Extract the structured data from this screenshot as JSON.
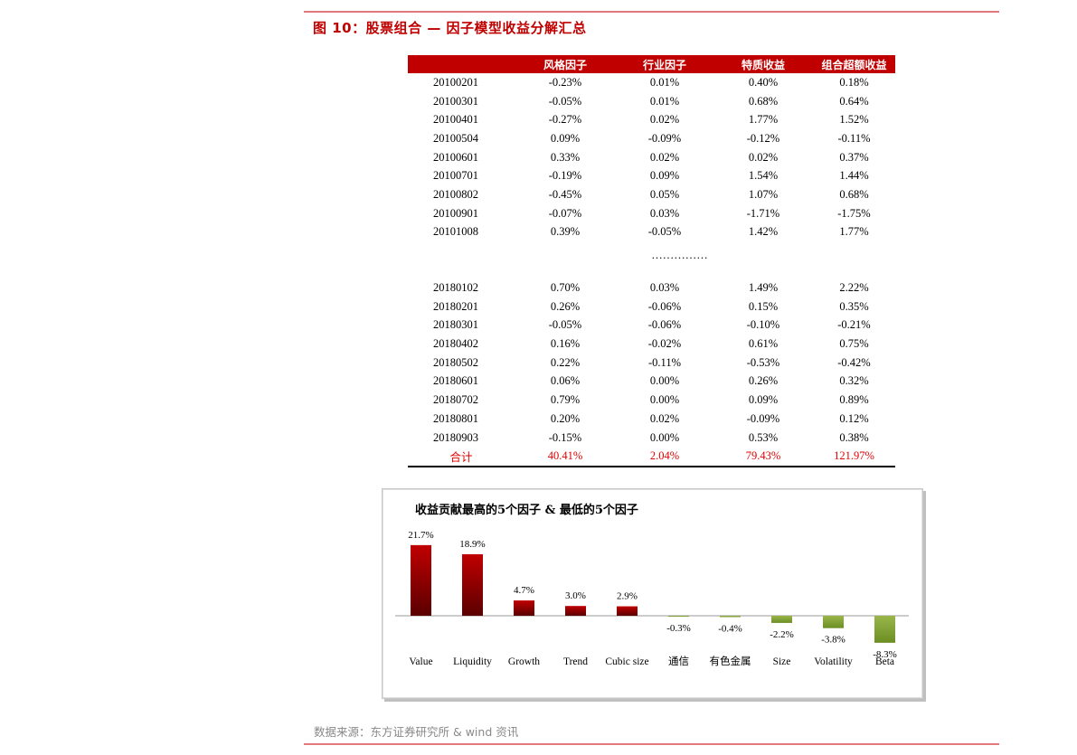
{
  "figure_title": "图 10：股票组合 — 因子模型收益分解汇总",
  "table": {
    "headers": [
      "",
      "风格因子",
      "行业因子",
      "特质收益",
      "组合超额收益"
    ],
    "rows_top": [
      [
        "20100201",
        "-0.23%",
        "0.01%",
        "0.40%",
        "0.18%"
      ],
      [
        "20100301",
        "-0.05%",
        "0.01%",
        "0.68%",
        "0.64%"
      ],
      [
        "20100401",
        "-0.27%",
        "0.02%",
        "1.77%",
        "1.52%"
      ],
      [
        "20100504",
        "0.09%",
        "-0.09%",
        "-0.12%",
        "-0.11%"
      ],
      [
        "20100601",
        "0.33%",
        "0.02%",
        "0.02%",
        "0.37%"
      ],
      [
        "20100701",
        "-0.19%",
        "0.09%",
        "1.54%",
        "1.44%"
      ],
      [
        "20100802",
        "-0.45%",
        "0.05%",
        "1.07%",
        "0.68%"
      ],
      [
        "20100901",
        "-0.07%",
        "0.03%",
        "-1.71%",
        "-1.75%"
      ],
      [
        "20101008",
        "0.39%",
        "-0.05%",
        "1.42%",
        "1.77%"
      ]
    ],
    "ellipsis": "……………",
    "rows_bottom": [
      [
        "20180102",
        "0.70%",
        "0.03%",
        "1.49%",
        "2.22%"
      ],
      [
        "20180201",
        "0.26%",
        "-0.06%",
        "0.15%",
        "0.35%"
      ],
      [
        "20180301",
        "-0.05%",
        "-0.06%",
        "-0.10%",
        "-0.21%"
      ],
      [
        "20180402",
        "0.16%",
        "-0.02%",
        "0.61%",
        "0.75%"
      ],
      [
        "20180502",
        "0.22%",
        "-0.11%",
        "-0.53%",
        "-0.42%"
      ],
      [
        "20180601",
        "0.06%",
        "0.00%",
        "0.26%",
        "0.32%"
      ],
      [
        "20180702",
        "0.79%",
        "0.00%",
        "0.09%",
        "0.89%"
      ],
      [
        "20180801",
        "0.20%",
        "0.02%",
        "-0.09%",
        "0.12%"
      ],
      [
        "20180903",
        "-0.15%",
        "0.00%",
        "0.53%",
        "0.38%"
      ]
    ],
    "total": [
      "合计",
      "40.41%",
      "2.04%",
      "79.43%",
      "121.97%"
    ]
  },
  "chart_data": {
    "type": "bar",
    "title": "收益贡献最高的5个因子 & 最低的5个因子",
    "categories": [
      "Value",
      "Liquidity",
      "Growth",
      "Trend",
      "Cubic size",
      "通信",
      "有色金属",
      "Size",
      "Volatility",
      "Beta"
    ],
    "values": [
      21.7,
      18.9,
      4.7,
      3.0,
      2.9,
      -0.3,
      -0.4,
      -2.2,
      -3.8,
      -8.3
    ],
    "data_labels": [
      "21.7%",
      "18.9%",
      "4.7%",
      "3.0%",
      "2.9%",
      "-0.3%",
      "-0.4%",
      "-2.2%",
      "-3.8%",
      "-8.3%"
    ],
    "positive_color": "#c00000",
    "negative_color": "#6b8e23",
    "grid": false,
    "legend": "none"
  },
  "source": "数据来源：东方证券研究所 & wind 资讯",
  "colors": {
    "accent": "#c00000",
    "rule": "#e4787c",
    "total_text": "#e00000"
  }
}
